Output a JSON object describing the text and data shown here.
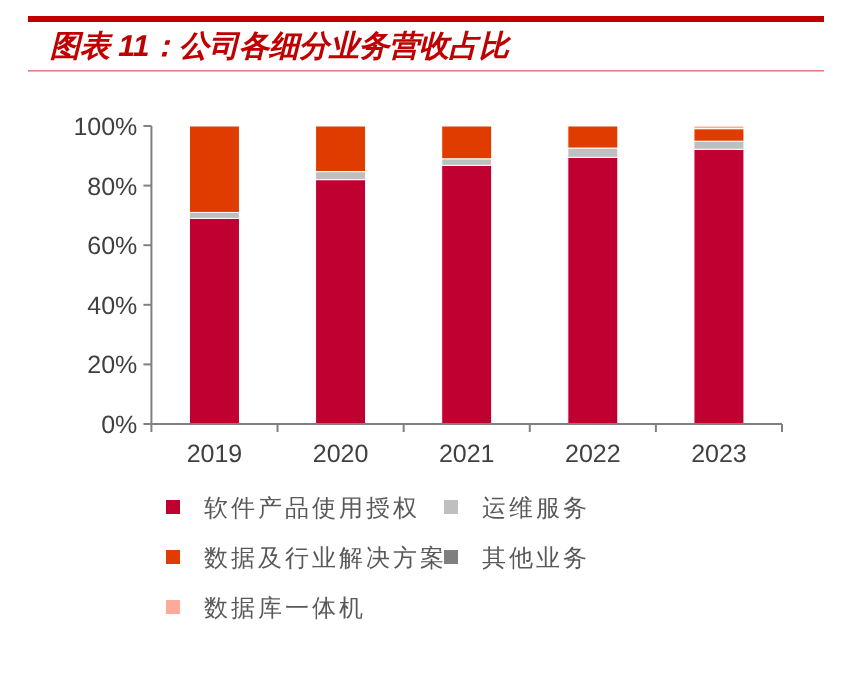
{
  "chart_data": {
    "type": "bar",
    "stacked": true,
    "title": "图表 11：公司各细分业务营收占比",
    "categories": [
      "2019",
      "2020",
      "2021",
      "2022",
      "2023"
    ],
    "series": [
      {
        "name": "软件产品使用授权",
        "color": "#c00030",
        "values": [
          69,
          82,
          86.8,
          89.5,
          92.2
        ]
      },
      {
        "name": "运维服务",
        "color": "#bfbfbf",
        "values": [
          2,
          2.7,
          2.2,
          3.1,
          2.7
        ]
      },
      {
        "name": "数据及行业解决方案",
        "color": "#e03c00",
        "values": [
          29,
          15.3,
          11,
          7.4,
          4.2
        ]
      },
      {
        "name": "其他业务",
        "color": "#7f7f7f",
        "values": [
          null,
          null,
          null,
          null,
          null
        ]
      },
      {
        "name": "数据库一体机",
        "color": "#ffaa99",
        "values": [
          null,
          null,
          null,
          null,
          0.9
        ]
      }
    ],
    "ylim": [
      0,
      100
    ],
    "yticks": [
      {
        "value": 0,
        "label": "0%"
      },
      {
        "value": 20,
        "label": "20%"
      },
      {
        "value": 40,
        "label": "40%"
      },
      {
        "value": 60,
        "label": "60%"
      },
      {
        "value": 80,
        "label": "80%"
      },
      {
        "value": 100,
        "label": "100%"
      }
    ],
    "legend": "bottom",
    "grid": false
  }
}
